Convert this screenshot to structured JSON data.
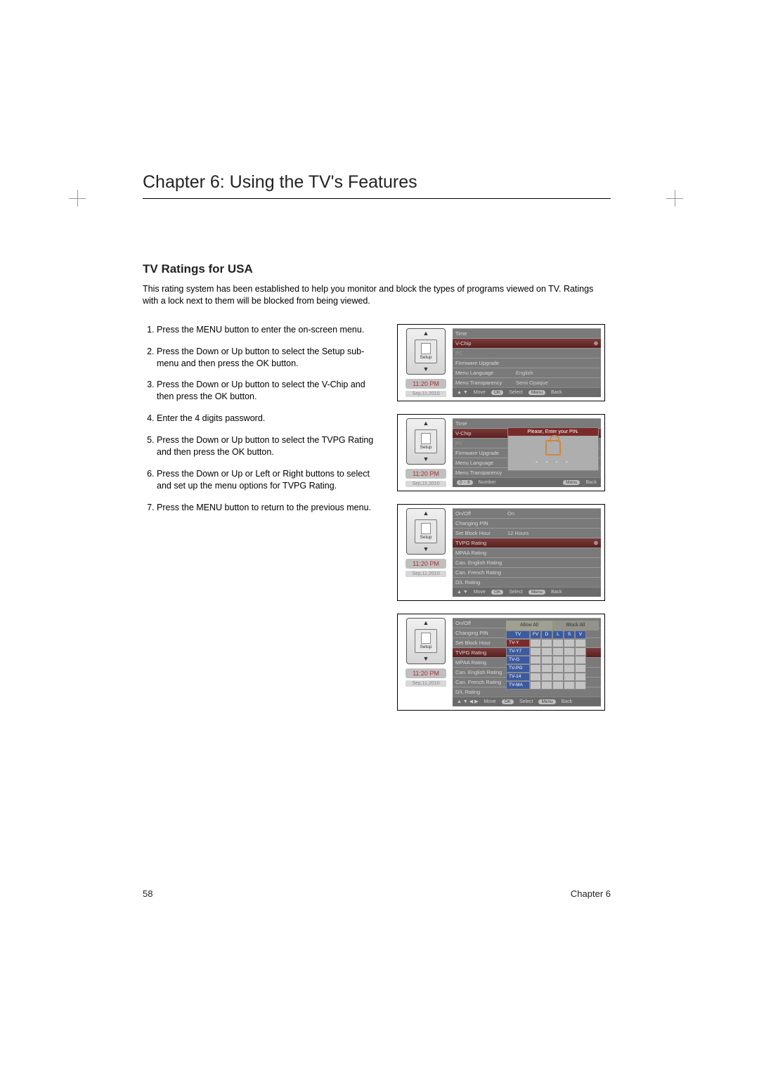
{
  "chapter_title": "Chapter 6: Using the TV's Features",
  "section_title": "TV Ratings for USA",
  "intro": "This rating system has been established to help you monitor and block the types of programs viewed on TV. Ratings with a lock next to them will be blocked from being viewed.",
  "steps": [
    "Press the MENU  button to enter the on-screen menu.",
    "Press the Down   or  Up button to select the    Setup sub-menu and then press the   OK button.",
    "Press the Down   or  Up button to select the    V-Chip and then press the  OK button.",
    "Enter the 4 digits password.",
    "Press the Down   or  Up button to select the    TVPG Rating   and then press the  OK button.",
    "Press the Down   or  Up or  Left  or  Right  buttons to select and set up the menu options for TVPG Rating.",
    "Press the MENU  button to return to the previous menu."
  ],
  "time": "11:20 PM",
  "date": "Sep,11,2010",
  "remote_label": "Setup",
  "footer": {
    "move": "Move",
    "select": "Select",
    "back": "Back",
    "ok_pill": "OK",
    "menu_pill": "Menu",
    "number": "Number",
    "digits_pill": "0 ~ 9"
  },
  "screen1": {
    "rows": [
      {
        "label": "Time",
        "value": "",
        "sel": false
      },
      {
        "label": "V-Chip",
        "value": "",
        "sel": true,
        "arrow": true
      },
      {
        "label": "PC",
        "value": "",
        "sel": false,
        "dim": true
      },
      {
        "label": "Firmware Upgrade",
        "value": "",
        "sel": false
      },
      {
        "label": "Menu Language",
        "value": "English",
        "sel": false
      },
      {
        "label": "Menu Transparency",
        "value": "Semi Opaque",
        "sel": false
      }
    ]
  },
  "screen2": {
    "rows": [
      {
        "label": "Time",
        "value": "",
        "sel": false
      },
      {
        "label": "V-Chip",
        "value": "",
        "sel": true
      },
      {
        "label": "PC",
        "value": "",
        "sel": false,
        "dim": true
      },
      {
        "label": "Firmware Upgrade",
        "value": "",
        "sel": false
      },
      {
        "label": "Menu Language",
        "value": "",
        "sel": false
      },
      {
        "label": "Menu Transparency",
        "value": "",
        "sel": false
      }
    ],
    "pin_title": "Please, Enter your PIN.",
    "pin_dots": "- - - -"
  },
  "screen3": {
    "rows": [
      {
        "label": "On/Off",
        "value": "On",
        "sel": false
      },
      {
        "label": "Changing PIN",
        "value": "",
        "sel": false
      },
      {
        "label": "Set Block Hour",
        "value": "12 Hours",
        "sel": false
      },
      {
        "label": "TVPG Rating",
        "value": "",
        "sel": true,
        "arrow": true
      },
      {
        "label": "MPAA Rating",
        "value": "",
        "sel": false
      },
      {
        "label": "Can. English Rating",
        "value": "",
        "sel": false
      },
      {
        "label": "Can. French Rating",
        "value": "",
        "sel": false
      },
      {
        "label": "D/L Rating",
        "value": "",
        "sel": false
      }
    ]
  },
  "screen4": {
    "rows": [
      {
        "label": "On/Off",
        "value": ""
      },
      {
        "label": "Changing PIN",
        "value": ""
      },
      {
        "label": "Set Block Hour",
        "value": ""
      },
      {
        "label": "TVPG Rating",
        "value": "",
        "sel": true
      },
      {
        "label": "MPAA Rating",
        "value": ""
      },
      {
        "label": "Can. English Rating",
        "value": ""
      },
      {
        "label": "Can. French Rating",
        "value": ""
      },
      {
        "label": "D/L Rating",
        "value": ""
      }
    ],
    "tabs": [
      "Allow All",
      "Block All"
    ],
    "cols": [
      "TV",
      "FV",
      "D",
      "L",
      "S",
      "V"
    ],
    "ratings": [
      "TV-Y",
      "TV-Y7",
      "TV-G",
      "TV-PG",
      "TV-14",
      "TV-MA"
    ]
  },
  "page_number": "58",
  "footer_chapter": "Chapter 6",
  "colors": {
    "menu_bg": "#7a7a7a",
    "menu_sel": "#7a3a3a",
    "grid_blue": "#3c5aa0",
    "time_color": "#a33"
  }
}
